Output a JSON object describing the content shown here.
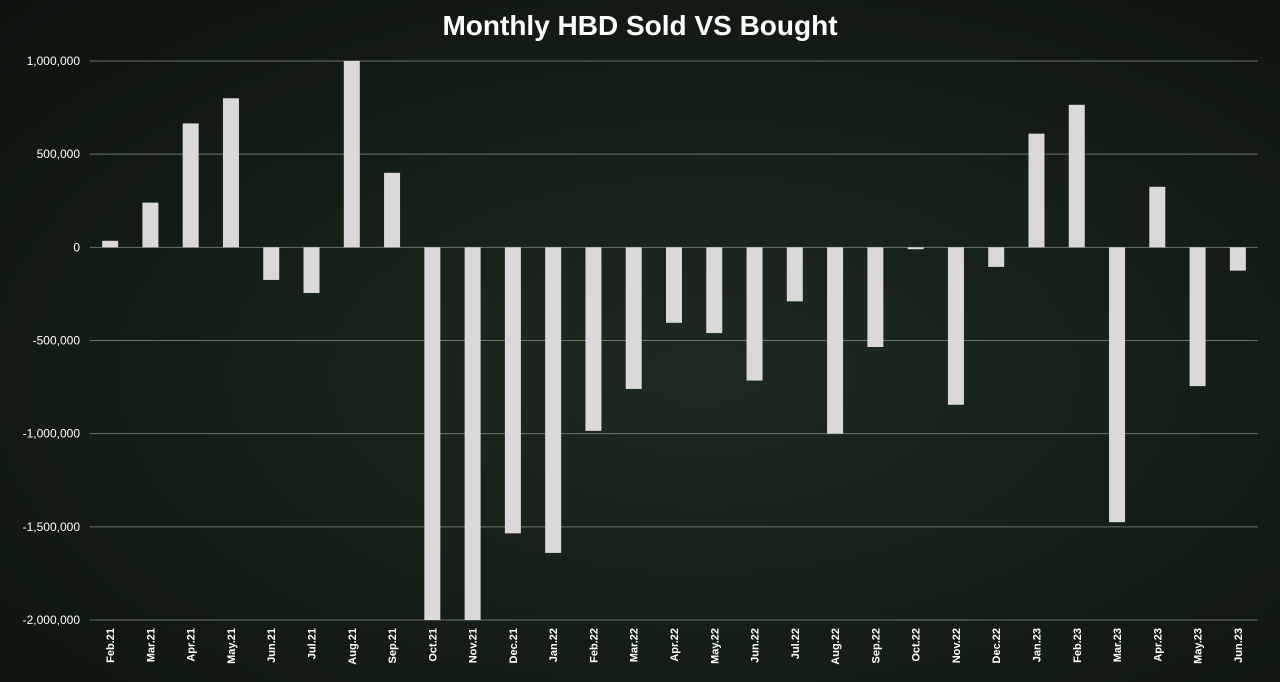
{
  "chart_data": {
    "type": "bar",
    "title": "Monthly HBD Sold VS Bought",
    "xlabel": "",
    "ylabel": "",
    "ylim": [
      -2000000,
      1000000
    ],
    "yticks": [
      1000000,
      500000,
      0,
      -500000,
      -1000000,
      -1500000,
      -2000000
    ],
    "ytick_labels": [
      "1,000,000",
      "500,000",
      "0",
      "-500,000",
      "-1,000,000",
      "-1,500,000",
      "-2,000,000"
    ],
    "grid": true,
    "categories": [
      "Feb.21",
      "Mar.21",
      "Apr.21",
      "May.21",
      "Jun.21",
      "Jul.21",
      "Aug.21",
      "Sep.21",
      "Oct.21",
      "Nov.21",
      "Dec.21",
      "Jan.22",
      "Feb.22",
      "Mar.22",
      "Apr.22",
      "May.22",
      "Jun.22",
      "Jul.22",
      "Aug.22",
      "Sep.22",
      "Oct.22",
      "Nov.22",
      "Dec.22",
      "Jan.23",
      "Feb.23",
      "Mar.23",
      "Apr.23",
      "May.23",
      "Jun.23"
    ],
    "values": [
      35000,
      240000,
      665000,
      800000,
      -175000,
      -245000,
      1000000,
      400000,
      -2000000,
      -2000000,
      -1535000,
      -1640000,
      -985000,
      -760000,
      -405000,
      -460000,
      -715000,
      -290000,
      -1000000,
      -535000,
      -10000,
      -845000,
      -105000,
      610000,
      765000,
      -1475000,
      325000,
      -745000,
      -125000
    ],
    "colors": {
      "bar": "#d9d9d9",
      "grid": "#8a9a8c",
      "background": "#152017"
    }
  }
}
